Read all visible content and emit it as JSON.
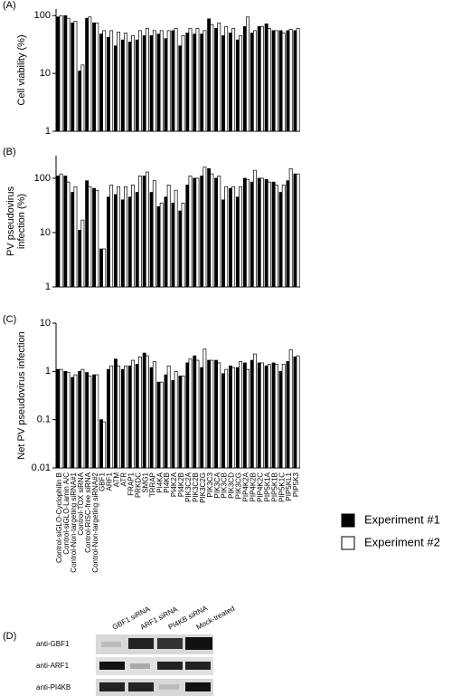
{
  "chart_data": [
    {
      "type": "bar",
      "panel_label": "(A)",
      "ylabel": [
        "Cell viability (%)"
      ],
      "log_scale": true,
      "ylim": [
        1,
        130
      ],
      "yticks": [
        1,
        10,
        100
      ],
      "series": [
        {
          "color": "#000000",
          "values": [
            95,
            100,
            75,
            11,
            90,
            75,
            48,
            42,
            30,
            38,
            35,
            38,
            45,
            45,
            48,
            40,
            55,
            30,
            50,
            48,
            48,
            88,
            60,
            45,
            50,
            38,
            65,
            50,
            65,
            72,
            55,
            55,
            55,
            55
          ]
        },
        {
          "color": "#ffffff",
          "values": [
            100,
            90,
            80,
            14,
            95,
            75,
            55,
            55,
            52,
            50,
            45,
            55,
            60,
            55,
            55,
            55,
            60,
            45,
            60,
            60,
            55,
            70,
            75,
            65,
            60,
            45,
            95,
            55,
            65,
            60,
            55,
            50,
            58,
            60
          ]
        }
      ]
    },
    {
      "type": "bar",
      "panel_label": "(B)",
      "ylabel": [
        "PV pseudovirus",
        "infection (%)"
      ],
      "log_scale": true,
      "ylim": [
        1,
        260
      ],
      "yticks": [
        1,
        10,
        100
      ],
      "series": [
        {
          "color": "#000000",
          "values": [
            110,
            110,
            55,
            11,
            90,
            65,
            5,
            45,
            50,
            40,
            45,
            55,
            110,
            55,
            30,
            45,
            35,
            25,
            75,
            100,
            110,
            150,
            100,
            40,
            65,
            45,
            100,
            85,
            100,
            95,
            85,
            55,
            90,
            120
          ]
        },
        {
          "color": "#ffffff",
          "values": [
            120,
            85,
            70,
            17,
            70,
            60,
            5,
            75,
            70,
            70,
            75,
            110,
            130,
            90,
            35,
            75,
            60,
            35,
            110,
            100,
            160,
            120,
            110,
            70,
            70,
            70,
            95,
            140,
            100,
            85,
            75,
            75,
            150,
            120
          ]
        }
      ]
    },
    {
      "type": "bar",
      "panel_label": "(C)",
      "ylabel": [
        "Net PV pseudovirus infection"
      ],
      "log_scale": true,
      "ylim": [
        0.01,
        10
      ],
      "yticks": [
        0.01,
        0.1,
        1,
        10
      ],
      "legend": "bottom-right",
      "categories": [
        "Control-siGLO-Cyclophilin B",
        "Control-siGLO-Lamin A/C",
        "Control-Non-targeting siRNA#1",
        "Control-TOX siRNA",
        "Control-RISC-free siRNA",
        "Control-Non-targeting siRNA#2",
        "GBF1",
        "ARF1",
        "ATM",
        "ATR",
        "FRAP1",
        "PRKDC",
        "SMG1",
        "TRRAP",
        "PI4KA",
        "PI4KB",
        "PI4K2A",
        "PI4K2B",
        "PIK3C2A",
        "PIK3C2B",
        "PIK3C2G",
        "PIK3C3",
        "PIK3CA",
        "PIK3CB",
        "PIK3CD",
        "PIK3CG",
        "PIP4K2A",
        "PIP4K2B",
        "PIP4K2C",
        "PIP5K1A",
        "PIP5K1B",
        "PIP5K1C",
        "PIP5KL1",
        "PIP5K3"
      ],
      "series": [
        {
          "name": "Experiment #1",
          "color": "#000000",
          "values": [
            1.1,
            1.0,
            0.75,
            1.0,
            0.95,
            0.85,
            0.1,
            1.1,
            1.8,
            1.1,
            1.3,
            1.4,
            2.4,
            1.2,
            0.6,
            0.85,
            0.65,
            0.8,
            1.5,
            2.1,
            1.2,
            1.7,
            1.7,
            0.9,
            1.3,
            1.2,
            1.5,
            1.7,
            1.5,
            1.3,
            1.5,
            1.0,
            1.6,
            2.0
          ]
        },
        {
          "name": "Experiment #2",
          "color": "#ffffff",
          "values": [
            1.1,
            0.95,
            0.85,
            1.1,
            0.8,
            0.85,
            0.09,
            1.3,
            1.3,
            1.3,
            1.7,
            2.0,
            2.1,
            1.6,
            0.6,
            1.3,
            1.0,
            0.8,
            1.8,
            1.7,
            2.9,
            1.7,
            1.5,
            1.1,
            1.2,
            1.6,
            1.1,
            2.3,
            1.5,
            1.4,
            1.4,
            1.4,
            2.8,
            2.1
          ]
        }
      ]
    }
  ],
  "blot": {
    "panel_label": "(D)",
    "lanes": [
      "GBF1 siRNA",
      "ARF1 siRNA",
      "PI4KB siRNA",
      "Mock-treated"
    ],
    "rows": [
      "anti-GBF1",
      "anti-ARF1",
      "anti-PI4KB"
    ]
  }
}
